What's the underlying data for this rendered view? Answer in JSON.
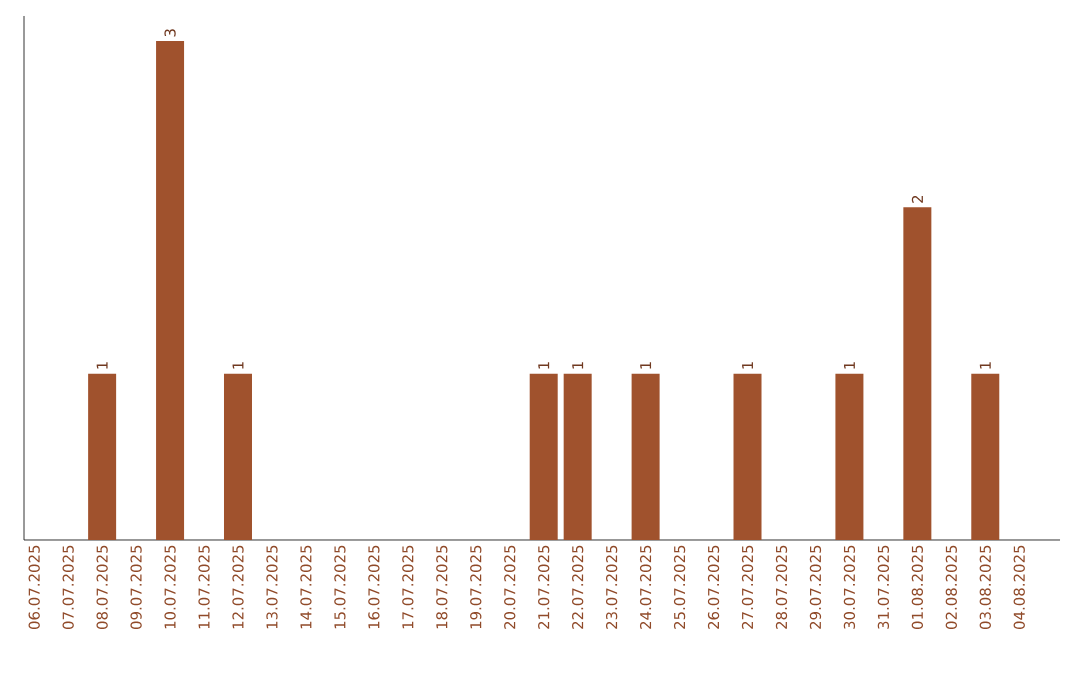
{
  "chart_data": {
    "type": "bar",
    "color": "#a0522d",
    "categories": [
      "06.07.2025",
      "07.07.2025",
      "08.07.2025",
      "09.07.2025",
      "10.07.2025",
      "11.07.2025",
      "12.07.2025",
      "13.07.2025",
      "14.07.2025",
      "15.07.2025",
      "16.07.2025",
      "17.07.2025",
      "18.07.2025",
      "19.07.2025",
      "20.07.2025",
      "21.07.2025",
      "22.07.2025",
      "23.07.2025",
      "24.07.2025",
      "25.07.2025",
      "26.07.2025",
      "27.07.2025",
      "28.07.2025",
      "29.07.2025",
      "30.07.2025",
      "31.07.2025",
      "01.08.2025",
      "02.08.2025",
      "03.08.2025",
      "04.08.2025"
    ],
    "values": [
      0,
      0,
      1,
      0,
      3,
      0,
      1,
      0,
      0,
      0,
      0,
      0,
      0,
      0,
      0,
      1,
      1,
      0,
      1,
      0,
      0,
      1,
      0,
      0,
      1,
      0,
      2,
      0,
      1,
      0
    ],
    "value_labels": [
      null,
      null,
      "1",
      null,
      "3",
      null,
      "1",
      null,
      null,
      null,
      null,
      null,
      null,
      null,
      null,
      "1",
      "1",
      null,
      "1",
      null,
      null,
      "1",
      null,
      null,
      "1",
      null,
      "2",
      null,
      "1",
      null
    ],
    "ylim": [
      0,
      3.15
    ],
    "tick_labels": "x"
  }
}
